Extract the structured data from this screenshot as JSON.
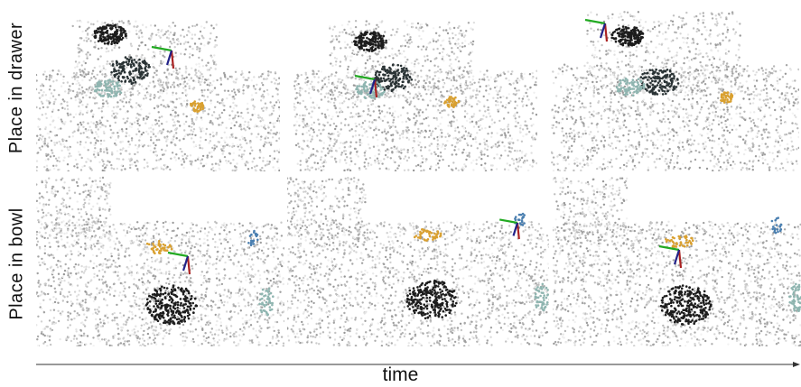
{
  "rows": [
    {
      "label": "Place in drawer"
    },
    {
      "label": "Place in bowl"
    }
  ],
  "axis": {
    "label": "time"
  },
  "colors": {
    "cloud_light": "#d8d8d8",
    "cloud_mid": "#a8a8a8",
    "dark_object": "#1c1c1c",
    "target_item": "#d9a030",
    "teal_object": "#8fb5b0",
    "blue_object": "#4a7fb0",
    "gripper_green": "#22aa22",
    "gripper_red": "#aa2222",
    "gripper_blue": "#222288"
  },
  "panels": [
    {
      "row": "drawer",
      "step": 1
    },
    {
      "row": "drawer",
      "step": 2
    },
    {
      "row": "drawer",
      "step": 3
    },
    {
      "row": "bowl",
      "step": 1
    },
    {
      "row": "bowl",
      "step": 2
    },
    {
      "row": "bowl",
      "step": 3
    }
  ]
}
